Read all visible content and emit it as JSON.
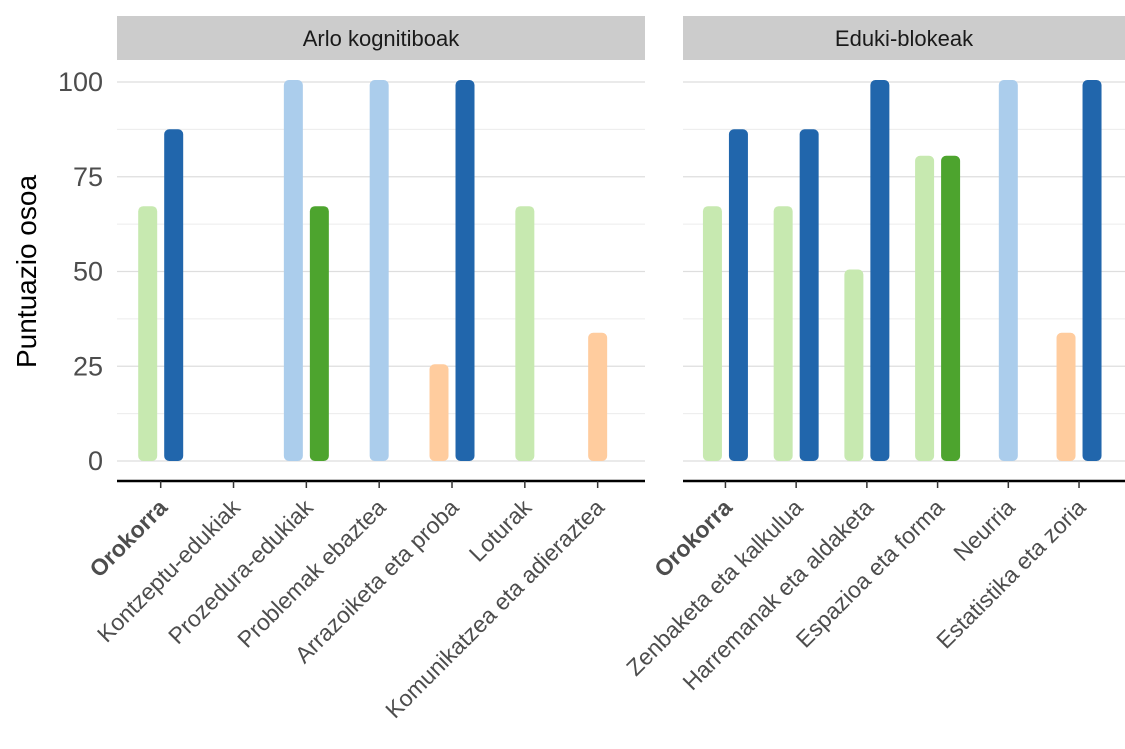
{
  "chart_data": {
    "type": "bar",
    "ylabel": "Puntuazio osoa",
    "ylim": [
      0,
      100
    ],
    "yticks": [
      0,
      25,
      50,
      75,
      100
    ],
    "grid": true,
    "legend": "none",
    "panels": [
      {
        "title": "Arlo kognitiboak",
        "categories": [
          "Orokorra",
          "Kontzeptu-edukiak",
          "Prozedura-edukiak",
          "Problemak ebaztea",
          "Arrazoiketa eta proba",
          "Loturak",
          "Komunikatzea eta adieraztea"
        ],
        "bold_categories": [
          "Orokorra"
        ],
        "bars": [
          [
            {
              "value": 66.7,
              "color": "#c7e9b0"
            },
            {
              "value": 87.0,
              "color": "#2166ac"
            }
          ],
          [],
          [
            {
              "value": 100,
              "color": "#abcdec"
            },
            {
              "value": 66.7,
              "color": "#4da42e"
            }
          ],
          [
            {
              "value": 100,
              "color": "#abcdec"
            }
          ],
          [
            {
              "value": 25,
              "color": "#ffcc9e"
            },
            {
              "value": 100,
              "color": "#2166ac"
            }
          ],
          [
            {
              "value": 66.7,
              "color": "#c7e9b0"
            }
          ],
          [
            {
              "value": 33.3,
              "color": "#ffcc9e"
            }
          ]
        ]
      },
      {
        "title": "Eduki-blokeak",
        "categories": [
          "Orokorra",
          "Zenbaketa eta kalkulua",
          "Harremanak eta aldaketa",
          "Espazioa eta forma",
          "Neurria",
          "Estatistika eta zoria"
        ],
        "bold_categories": [
          "Orokorra"
        ],
        "bars": [
          [
            {
              "value": 66.7,
              "color": "#c7e9b0"
            },
            {
              "value": 87.0,
              "color": "#2166ac"
            }
          ],
          [
            {
              "value": 66.7,
              "color": "#c7e9b0"
            },
            {
              "value": 87.0,
              "color": "#2166ac"
            }
          ],
          [
            {
              "value": 50,
              "color": "#c7e9b0"
            },
            {
              "value": 100,
              "color": "#2166ac"
            }
          ],
          [
            {
              "value": 80,
              "color": "#c7e9b0"
            },
            {
              "value": 80,
              "color": "#4da42e"
            }
          ],
          [
            {
              "value": 100,
              "color": "#abcdec"
            }
          ],
          [
            {
              "value": 33.3,
              "color": "#ffcc9e"
            },
            {
              "value": 100,
              "color": "#2166ac"
            }
          ]
        ]
      }
    ]
  }
}
